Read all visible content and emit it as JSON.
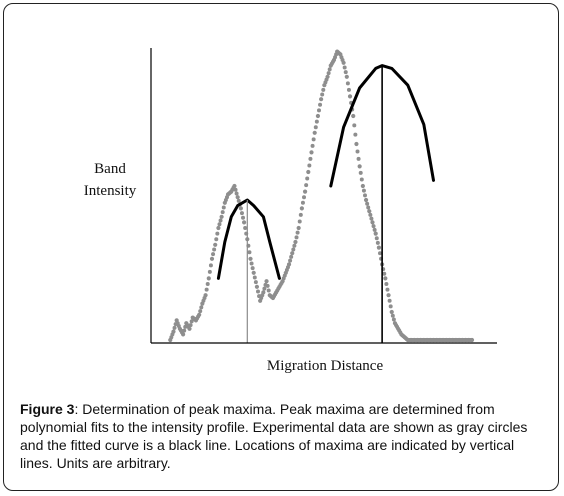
{
  "chart_data": {
    "type": "scatter",
    "title": "",
    "xlabel": "Migration Distance",
    "ylabel": "Band Intensity",
    "xlim": [
      0,
      100
    ],
    "ylim": [
      0,
      100
    ],
    "grid": false,
    "legend": "none",
    "colors": {
      "points": "#8e8e8e",
      "fit": "#000000",
      "axis": "#000000",
      "minor_peak_line": "#8a8a8a",
      "major_peak_line": "#000000"
    },
    "series": [
      {
        "kind": "experimental_points",
        "x": [
          6,
          7,
          8,
          9,
          10,
          11,
          12,
          13,
          14,
          15,
          16,
          17,
          18,
          19,
          20,
          21,
          22,
          23,
          24,
          25,
          26,
          27,
          28,
          29,
          30,
          31,
          32,
          33,
          34,
          35,
          36,
          37,
          38,
          39,
          40,
          41,
          42,
          43,
          44,
          45,
          46,
          47,
          48,
          49,
          50,
          51,
          52,
          53,
          54,
          55,
          56,
          57,
          58,
          59,
          60,
          61,
          62,
          63,
          64,
          65,
          66,
          67,
          68,
          69,
          70,
          71,
          72,
          73,
          74,
          75,
          76,
          77,
          78,
          79,
          80,
          81,
          82,
          83,
          84,
          85,
          86,
          87,
          88,
          89,
          90,
          91,
          92,
          93,
          94,
          95,
          96,
          97,
          98,
          99,
          100
        ],
        "y": [
          0,
          3,
          7,
          4,
          2,
          6,
          4,
          8,
          7,
          9,
          13,
          16,
          22,
          29,
          34,
          40,
          44,
          49,
          52,
          53,
          55,
          51,
          47,
          42,
          36,
          29,
          24,
          19,
          14,
          17,
          21,
          16,
          15,
          17,
          19,
          21,
          24,
          27,
          31,
          35,
          40,
          47,
          53,
          60,
          67,
          74,
          80,
          86,
          91,
          94,
          98,
          100,
          103,
          102,
          99,
          94,
          87,
          80,
          70,
          62,
          55,
          50,
          46,
          42,
          38,
          33,
          27,
          22,
          16,
          10,
          6,
          4,
          2,
          1,
          0,
          0,
          0,
          0,
          0,
          0,
          0,
          0,
          0,
          0,
          0,
          0,
          0,
          0,
          0,
          0,
          0,
          0,
          0,
          0,
          0
        ]
      },
      {
        "kind": "fitted_curve_minor_peak",
        "x": [
          21,
          23,
          25,
          27,
          30,
          32,
          35,
          37,
          40
        ],
        "y": [
          22,
          35,
          44,
          48,
          50,
          48,
          44,
          35,
          22
        ]
      },
      {
        "kind": "fitted_curve_major_peak",
        "x": [
          56,
          60,
          65,
          70,
          72,
          75,
          80,
          85,
          88
        ],
        "y": [
          55,
          76,
          90,
          97,
          98,
          97,
          91,
          77,
          57
        ]
      }
    ],
    "peak_markers": [
      {
        "x": 30,
        "y": 50
      },
      {
        "x": 72,
        "y": 98
      }
    ]
  },
  "caption": {
    "label": "Figure 3",
    "text": ": Determination of peak maxima.  Peak maxima are determined from polynomial fits to the intensity profile. Experimental data are shown as gray circles and the fitted curve is a black line. Locations of maxima are indicated by vertical lines.  Units are arbitrary."
  }
}
